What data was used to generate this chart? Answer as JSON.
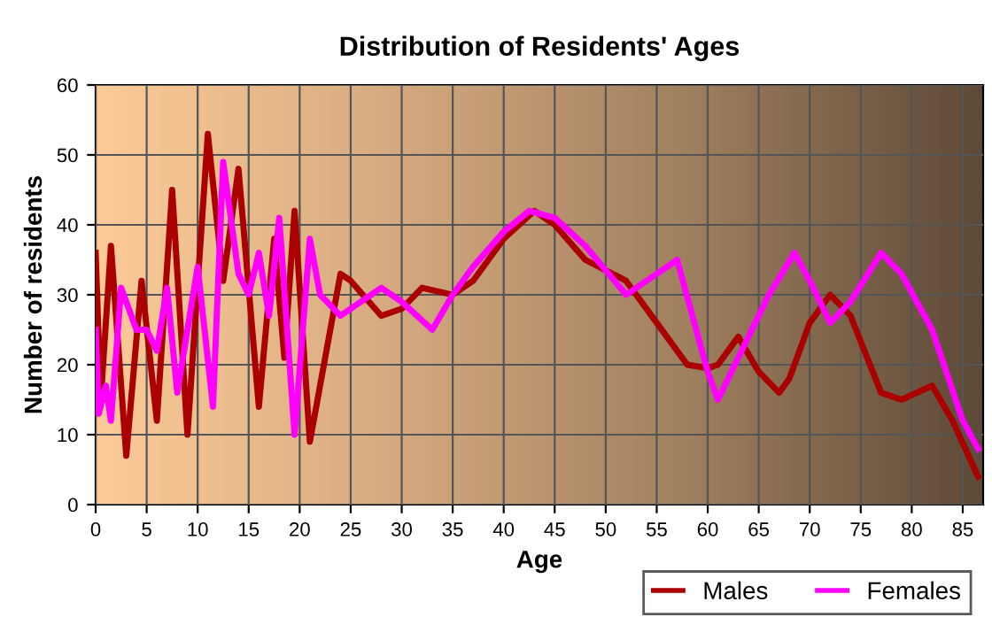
{
  "chart_data": {
    "type": "line",
    "title": "Distribution of Residents' Ages",
    "xlabel": "Age",
    "ylabel": "Number of residents",
    "xlim": [
      0,
      87
    ],
    "xticks": [
      0,
      5,
      10,
      15,
      20,
      25,
      30,
      35,
      40,
      45,
      50,
      55,
      60,
      65,
      70,
      75,
      80,
      85
    ],
    "ylim": [
      0,
      60
    ],
    "yticks": [
      0,
      10,
      20,
      30,
      40,
      50,
      60
    ],
    "grid": true,
    "legend": "bottom right",
    "series": [
      {
        "name": "Males",
        "color": "#aa0000",
        "x": [
          0,
          0.5,
          1.5,
          3,
          4.5,
          6,
          7.5,
          9,
          11,
          12.5,
          14,
          16,
          17.5,
          18.5,
          19.5,
          21,
          22,
          24,
          25,
          28,
          30,
          32,
          35,
          37,
          40,
          43,
          45,
          48,
          52,
          55,
          58,
          60,
          61,
          63,
          65,
          67,
          68,
          70,
          72,
          74,
          77,
          79,
          82,
          84,
          86.5
        ],
        "values": [
          36,
          15,
          37,
          7,
          32,
          12,
          45,
          10,
          53,
          32,
          48,
          14,
          38,
          21,
          42,
          9,
          17,
          33,
          32,
          27,
          28,
          31,
          30,
          32,
          38,
          42,
          40,
          35,
          32,
          26,
          20,
          19.5,
          20,
          24,
          19,
          16,
          18,
          26,
          30,
          27,
          16,
          15,
          17,
          12,
          4
        ]
      },
      {
        "name": "Females",
        "color": "#ff00ff",
        "x": [
          0,
          0.3,
          1,
          1.5,
          2.5,
          4,
          5,
          6,
          7,
          8,
          10,
          11.5,
          12.5,
          14,
          15,
          16,
          17,
          18,
          19.5,
          21,
          22,
          24,
          26,
          28,
          30,
          33,
          35,
          37,
          40,
          42.5,
          45,
          48,
          52,
          55,
          57,
          60,
          61,
          63,
          66,
          68.5,
          70,
          72,
          74,
          77,
          79,
          82,
          85,
          86.5
        ],
        "values": [
          25,
          13,
          17,
          12,
          31,
          25,
          25,
          22,
          31,
          16,
          34,
          14,
          49,
          33,
          30,
          36,
          27,
          41,
          10,
          38,
          30,
          27,
          29,
          31,
          29,
          25,
          30,
          34,
          39,
          42,
          41,
          37,
          30,
          33,
          35,
          19,
          15,
          21,
          30,
          36,
          32,
          26,
          29,
          36,
          33,
          25,
          12,
          8
        ]
      }
    ]
  }
}
